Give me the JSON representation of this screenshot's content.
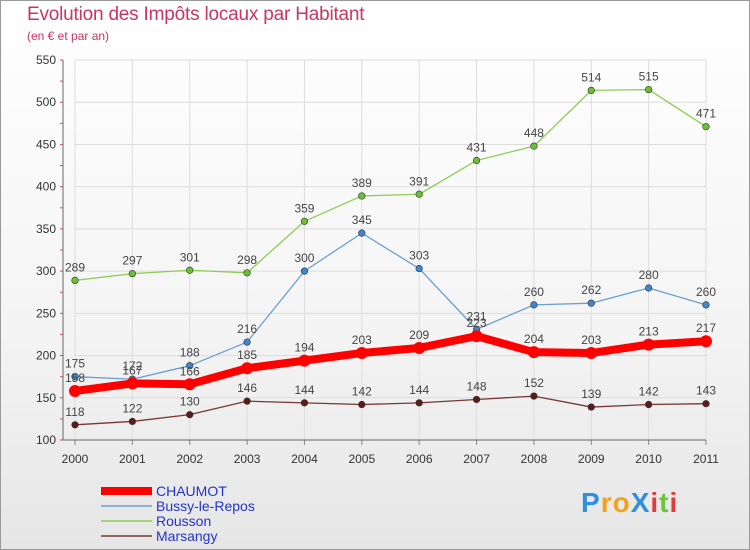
{
  "header": {
    "title": "Evolution des Impôts locaux par Habitant",
    "subtitle": "(en € et par an)"
  },
  "logo": {
    "text": "ProXiti",
    "letters": [
      "P",
      "r",
      "o",
      "X",
      "i",
      "t",
      "i"
    ],
    "letter_colors": [
      "#2f8fe0",
      "#f2a21b",
      "#f2a21b",
      "#2f8fe0",
      "#e23b3b",
      "#6fc33b",
      "#e23b3b"
    ]
  },
  "colors": {
    "title": "#c8365f",
    "grid": "#dddddd",
    "axis_text": "#333333",
    "value_text": "#444444"
  },
  "chart_data": {
    "type": "line",
    "x": [
      2000,
      2001,
      2002,
      2003,
      2004,
      2005,
      2006,
      2007,
      2008,
      2009,
      2010,
      2011
    ],
    "ylim": [
      100,
      550
    ],
    "yticks": [
      100,
      150,
      200,
      250,
      300,
      350,
      400,
      450,
      500,
      550
    ],
    "grid": true,
    "legend": "bottom-left",
    "series": [
      {
        "name": "Rousson",
        "color": "#8fcc55",
        "marker": "#6abf35",
        "label_color": "#444444",
        "width": 1.3,
        "values": [
          289,
          297,
          301,
          298,
          359,
          389,
          391,
          431,
          448,
          514,
          515,
          471
        ]
      },
      {
        "name": "Bussy-le-Repos",
        "color": "#6a9fd0",
        "marker": "#3f86cf",
        "label_color": "#444444",
        "width": 1.3,
        "values": [
          175,
          172,
          188,
          216,
          300,
          345,
          303,
          231,
          260,
          262,
          280,
          260
        ]
      },
      {
        "name": "Marsangy",
        "color": "#7a3535",
        "marker": "#5c1a1a",
        "label_color": "#444444",
        "width": 1.3,
        "values": [
          118,
          122,
          130,
          146,
          144,
          142,
          144,
          148,
          152,
          139,
          142,
          143
        ]
      },
      {
        "name": "CHAUMOT",
        "color": "#ff0000",
        "marker": "#ff0000",
        "label_color": "#444444",
        "width": 8,
        "values": [
          158,
          167,
          166,
          185,
          194,
          203,
          209,
          223,
          204,
          203,
          213,
          217
        ]
      }
    ],
    "legend_order": [
      "CHAUMOT",
      "Bussy-le-Repos",
      "Rousson",
      "Marsangy"
    ],
    "legend_colors": [
      "#2233cc",
      "#2233cc",
      "#2233cc",
      "#2233cc"
    ]
  }
}
